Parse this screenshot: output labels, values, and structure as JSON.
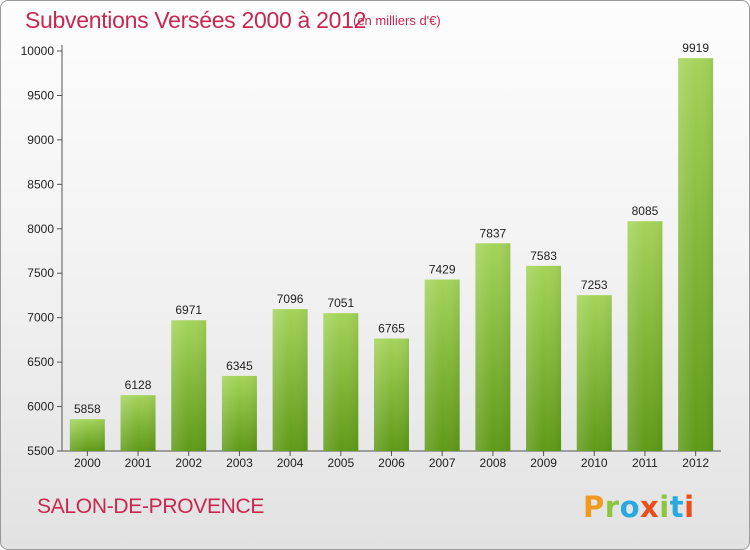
{
  "header": {
    "title": "Subventions Versées 2000 à 2012",
    "unit_note": "(en milliers d'€)"
  },
  "footer": {
    "city": "SALON-DE-PROVENCE",
    "brand_logo": "Proxiti"
  },
  "colors": {
    "title": "#c8274f",
    "bar_light": "#a4d45a",
    "bar_dark": "#5f9a17",
    "axis": "#555555",
    "logo_letters": [
      "#f29a1f",
      "#8cc63f",
      "#29a9e0",
      "#e94e1b",
      "#8cc63f",
      "#29a9e0",
      "#e94e1b"
    ]
  },
  "chart_data": {
    "type": "bar",
    "title": "Subventions Versées 2000 à 2012",
    "subtitle": "(en milliers d'€)",
    "xlabel": "",
    "ylabel": "",
    "categories": [
      "2000",
      "2001",
      "2002",
      "2003",
      "2004",
      "2005",
      "2006",
      "2007",
      "2008",
      "2009",
      "2010",
      "2011",
      "2012"
    ],
    "values": [
      5858,
      6128,
      6971,
      6345,
      7096,
      7051,
      6765,
      7429,
      7837,
      7583,
      7253,
      8085,
      9919
    ],
    "ylim": [
      5500,
      10000
    ],
    "yticks": [
      5500,
      6000,
      6500,
      7000,
      7500,
      8000,
      8500,
      9000,
      9500,
      10000
    ],
    "grid": false,
    "data_labels": true
  }
}
